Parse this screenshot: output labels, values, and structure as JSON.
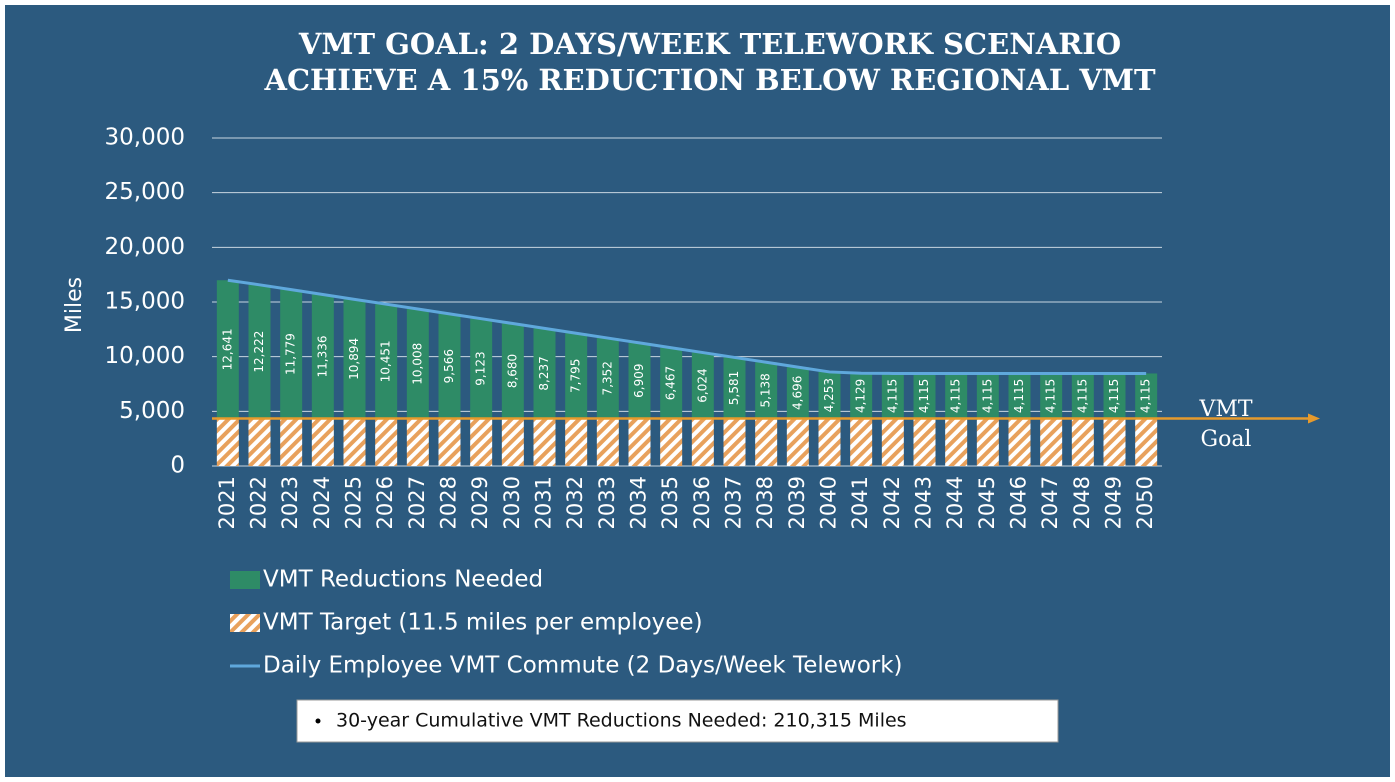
{
  "chart_data": {
    "type": "bar",
    "stacked": true,
    "title_lines": [
      "VMT GOAL: 2 DAYS/WEEK TELEWORK SCENARIO",
      "ACHIEVE A 15% REDUCTION BELOW REGIONAL VMT"
    ],
    "y_label": "Miles",
    "categories": [
      "2021",
      "2022",
      "2023",
      "2024",
      "2025",
      "2026",
      "2027",
      "2028",
      "2029",
      "2030",
      "2031",
      "2032",
      "2033",
      "2034",
      "2035",
      "2036",
      "2037",
      "2038",
      "2039",
      "2040",
      "2041",
      "2042",
      "2043",
      "2044",
      "2045",
      "2046",
      "2047",
      "2048",
      "2049",
      "2050"
    ],
    "series": [
      {
        "name": "VMT Target (11.5 miles per employee)",
        "type": "bar",
        "color": "#e8a15c",
        "hatch": true,
        "values": [
          4350,
          4350,
          4350,
          4350,
          4350,
          4350,
          4350,
          4350,
          4350,
          4350,
          4350,
          4350,
          4350,
          4350,
          4350,
          4350,
          4350,
          4350,
          4350,
          4350,
          4350,
          4350,
          4350,
          4350,
          4350,
          4350,
          4350,
          4350,
          4350,
          4350
        ]
      },
      {
        "name": "VMT Reductions Needed",
        "type": "bar",
        "color": "#2e8b66",
        "values": [
          12641,
          12222,
          11779,
          11336,
          10894,
          10451,
          10008,
          9566,
          9123,
          8680,
          8237,
          7795,
          7352,
          6909,
          6467,
          6024,
          5581,
          5138,
          4696,
          4253,
          4129,
          4115,
          4115,
          4115,
          4115,
          4115,
          4115,
          4115,
          4115,
          4115
        ],
        "value_labels": [
          "12,641",
          "12,222",
          "11,779",
          "11,336",
          "10,894",
          "10,451",
          "10,008",
          "9,566",
          "9,123",
          "8,680",
          "8,237",
          "7,795",
          "7,352",
          "6,909",
          "6,467",
          "6,024",
          "5,581",
          "5,138",
          "4,696",
          "4,253",
          "4,129",
          "4,115",
          "4,115",
          "4,115",
          "4,115",
          "4,115",
          "4,115",
          "4,115",
          "4,115",
          "4,115"
        ]
      },
      {
        "name": "Daily Employee VMT Commute (2 Days/Week Telework)",
        "type": "line",
        "color": "#5fa8dc",
        "values": [
          16991,
          16572,
          16129,
          15686,
          15244,
          14801,
          14358,
          13916,
          13473,
          13030,
          12587,
          12145,
          11702,
          11259,
          10817,
          10374,
          9931,
          9488,
          9046,
          8603,
          8479,
          8465,
          8465,
          8465,
          8465,
          8465,
          8465,
          8465,
          8465,
          8465
        ]
      }
    ],
    "legend_order": [
      1,
      0,
      2
    ],
    "ylim": [
      0,
      30000
    ],
    "yticks": [
      0,
      {
        "value": 5000,
        "label": "5,000"
      },
      {
        "value": 10000,
        "label": "10,000"
      },
      {
        "value": 15000,
        "label": "15,000"
      },
      {
        "value": 20000,
        "label": "20,000"
      },
      {
        "value": 25000,
        "label": "25,000"
      },
      {
        "value": 30000,
        "label": "30,000"
      }
    ],
    "grid": true,
    "goal": {
      "value": 4350,
      "label_lines": [
        "VMT",
        "Goal"
      ],
      "color": "#e69a2c"
    },
    "note": "30-year Cumulative VMT Reductions Needed: 210,315 Miles"
  }
}
